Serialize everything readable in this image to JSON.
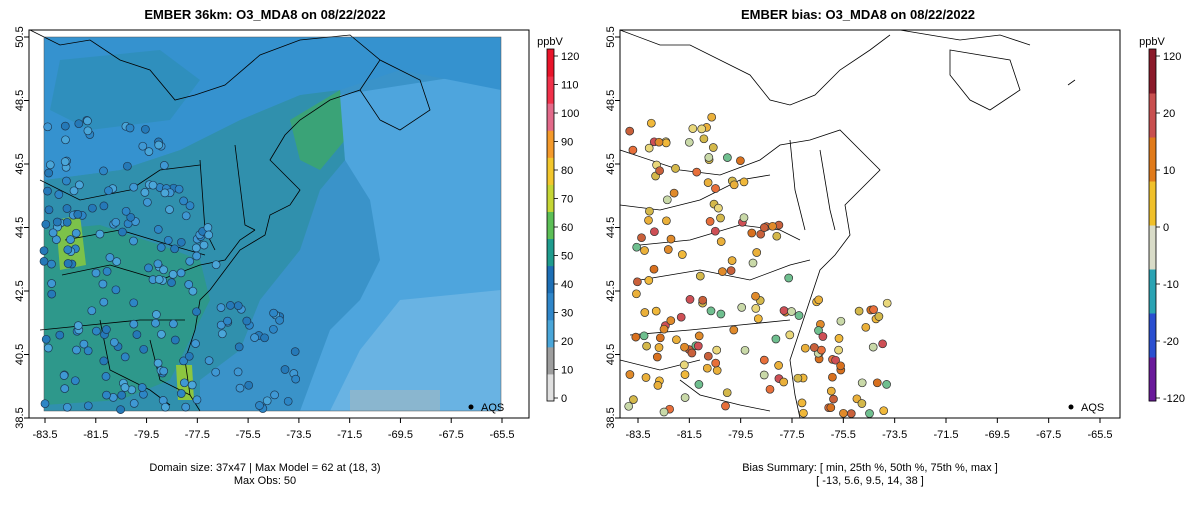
{
  "left_panel": {
    "title": "EMBER 36km: O3_MDA8 on 08/22/2022",
    "colorbar_unit": "ppbV",
    "colorbar_ticks": [
      "0",
      "10",
      "20",
      "30",
      "40",
      "50",
      "60",
      "70",
      "80",
      "90",
      "100",
      "110",
      "120"
    ],
    "legend_label": "AQS",
    "footer_line1": "Domain size: 37x47 | Max Model = 62 at (18, 3)",
    "footer_line2": "Max Obs: 50"
  },
  "right_panel": {
    "title": "EMBER bias: O3_MDA8 on 08/22/2022",
    "colorbar_unit": "ppbV",
    "colorbar_ticks": [
      "120",
      "20",
      "10",
      "0",
      "-10",
      "-20",
      "-120"
    ],
    "legend_label": "AQS",
    "footer_line1": "Bias Summary: [ min, 25th %, 50th %, 75th %, max ]",
    "footer_line2": "[ -13,   5.6,   9.5,   14,   38 ]"
  },
  "x_ticks": [
    "-83.5",
    "-81.5",
    "-79.5",
    "-77.5",
    "-75.5",
    "-73.5",
    "-71.5",
    "-69.5",
    "-67.5",
    "-65.5"
  ],
  "y_ticks": [
    "38.5",
    "40.5",
    "42.5",
    "44.5",
    "46.5",
    "48.5",
    "50.5"
  ],
  "colors": {
    "o3_scale": [
      "#e0e0e0",
      "#9e9e9e",
      "#4aa6d9",
      "#2f86c9",
      "#1d6fb5",
      "#1f9c8e",
      "#5cbf56",
      "#c5d635",
      "#f3c72d",
      "#f49a2b",
      "#e36a8a",
      "#f0314a",
      "#e8142a"
    ],
    "bias_scale": [
      "#6a1a9a",
      "#2a4fd0",
      "#2aa3b3",
      "#d9dcc8",
      "#f0c02a",
      "#e07a1a",
      "#c84f4f",
      "#8b1a2a"
    ]
  }
}
